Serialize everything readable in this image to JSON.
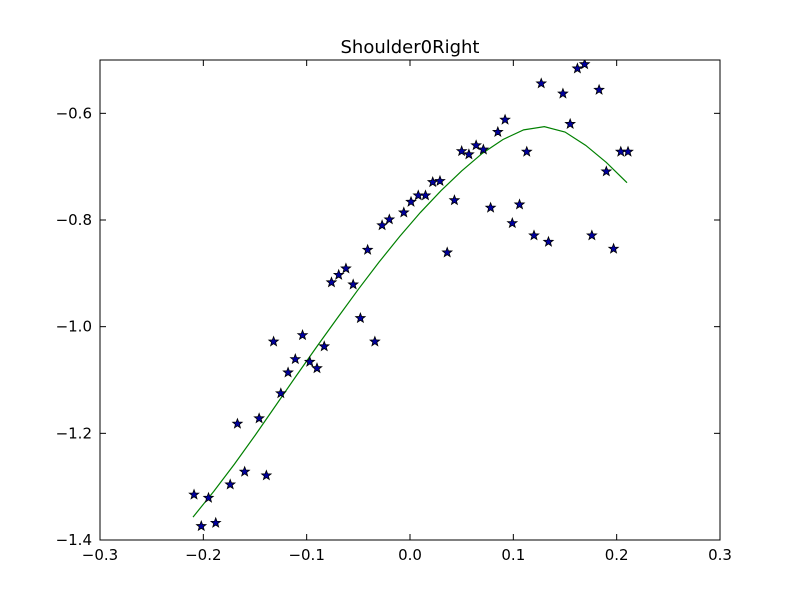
{
  "chart_data": {
    "type": "scatter",
    "title": "Shoulder0Right",
    "xlabel": "",
    "ylabel": "",
    "xlim": [
      -0.3,
      0.3
    ],
    "ylim": [
      -1.4,
      -0.5
    ],
    "x_ticks": [
      -0.3,
      -0.2,
      -0.1,
      0.0,
      0.1,
      0.2,
      0.3
    ],
    "x_tick_labels": [
      "−0.3",
      "−0.2",
      "−0.1",
      "0.0",
      "0.1",
      "0.2",
      "0.3"
    ],
    "y_ticks": [
      -1.4,
      -1.2,
      -1.0,
      -0.8,
      -0.6
    ],
    "y_tick_labels": [
      "−1.4",
      "−1.2",
      "−1.0",
      "−0.8",
      "−0.6"
    ],
    "grid": false,
    "legend": "none",
    "series": [
      {
        "kind": "scatter",
        "marker": "star",
        "color": "#0000a0",
        "edge_color": "#000000",
        "points": [
          [
            -0.209,
            -1.315
          ],
          [
            -0.202,
            -1.374
          ],
          [
            -0.195,
            -1.321
          ],
          [
            -0.188,
            -1.368
          ],
          [
            -0.174,
            -1.296
          ],
          [
            -0.167,
            -1.182
          ],
          [
            -0.16,
            -1.272
          ],
          [
            -0.146,
            -1.172
          ],
          [
            -0.139,
            -1.279
          ],
          [
            -0.132,
            -1.028
          ],
          [
            -0.125,
            -1.125
          ],
          [
            -0.118,
            -1.086
          ],
          [
            -0.111,
            -1.061
          ],
          [
            -0.104,
            -1.016
          ],
          [
            -0.097,
            -1.066
          ],
          [
            -0.09,
            -1.078
          ],
          [
            -0.083,
            -1.037
          ],
          [
            -0.076,
            -0.917
          ],
          [
            -0.069,
            -0.903
          ],
          [
            -0.062,
            -0.891
          ],
          [
            -0.055,
            -0.921
          ],
          [
            -0.048,
            -0.984
          ],
          [
            -0.041,
            -0.856
          ],
          [
            -0.034,
            -1.028
          ],
          [
            -0.027,
            -0.81
          ],
          [
            -0.02,
            -0.799
          ],
          [
            -0.006,
            -0.786
          ],
          [
            0.001,
            -0.766
          ],
          [
            0.008,
            -0.754
          ],
          [
            0.015,
            -0.754
          ],
          [
            0.022,
            -0.729
          ],
          [
            0.029,
            -0.727
          ],
          [
            0.036,
            -0.861
          ],
          [
            0.043,
            -0.763
          ],
          [
            0.05,
            -0.671
          ],
          [
            0.057,
            -0.677
          ],
          [
            0.064,
            -0.66
          ],
          [
            0.071,
            -0.668
          ],
          [
            0.078,
            -0.777
          ],
          [
            0.085,
            -0.635
          ],
          [
            0.092,
            -0.612
          ],
          [
            0.099,
            -0.806
          ],
          [
            0.106,
            -0.771
          ],
          [
            0.113,
            -0.672
          ],
          [
            0.12,
            -0.829
          ],
          [
            0.127,
            -0.544
          ],
          [
            0.134,
            -0.841
          ],
          [
            0.148,
            -0.563
          ],
          [
            0.155,
            -0.62
          ],
          [
            0.162,
            -0.516
          ],
          [
            0.169,
            -0.508
          ],
          [
            0.176,
            -0.829
          ],
          [
            0.183,
            -0.556
          ],
          [
            0.19,
            -0.709
          ],
          [
            0.197,
            -0.854
          ],
          [
            0.204,
            -0.672
          ],
          [
            0.211,
            -0.672
          ]
        ]
      },
      {
        "kind": "line",
        "color": "#008000",
        "points": [
          [
            -0.21,
            -1.357
          ],
          [
            -0.19,
            -1.309
          ],
          [
            -0.17,
            -1.258
          ],
          [
            -0.15,
            -1.204
          ],
          [
            -0.13,
            -1.148
          ],
          [
            -0.11,
            -1.092
          ],
          [
            -0.09,
            -1.037
          ],
          [
            -0.07,
            -0.983
          ],
          [
            -0.05,
            -0.93
          ],
          [
            -0.03,
            -0.879
          ],
          [
            -0.01,
            -0.831
          ],
          [
            0.01,
            -0.786
          ],
          [
            0.03,
            -0.745
          ],
          [
            0.05,
            -0.708
          ],
          [
            0.07,
            -0.675
          ],
          [
            0.09,
            -0.649
          ],
          [
            0.11,
            -0.631
          ],
          [
            0.13,
            -0.625
          ],
          [
            0.15,
            -0.635
          ],
          [
            0.17,
            -0.66
          ],
          [
            0.19,
            -0.692
          ],
          [
            0.21,
            -0.73
          ]
        ]
      }
    ]
  }
}
